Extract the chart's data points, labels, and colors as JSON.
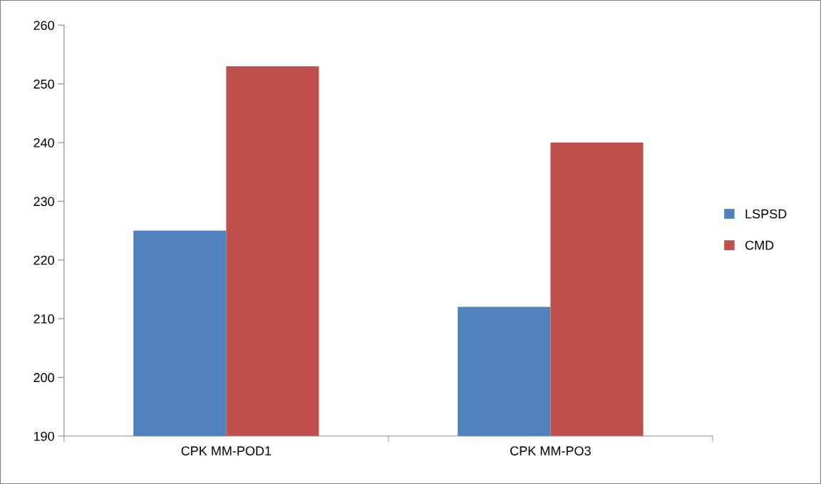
{
  "chart_data": {
    "type": "bar",
    "categories": [
      "CPK MM-POD1",
      "CPK MM-PO3"
    ],
    "series": [
      {
        "name": "LSPSD",
        "color": "#4f81bd",
        "values": [
          225,
          212
        ]
      },
      {
        "name": "CMD",
        "color": "#c0504d",
        "values": [
          253,
          240
        ]
      }
    ],
    "ylim": [
      190,
      260
    ],
    "yticks": [
      190,
      200,
      210,
      220,
      230,
      240,
      250,
      260
    ],
    "grid": false,
    "legend": "right"
  }
}
